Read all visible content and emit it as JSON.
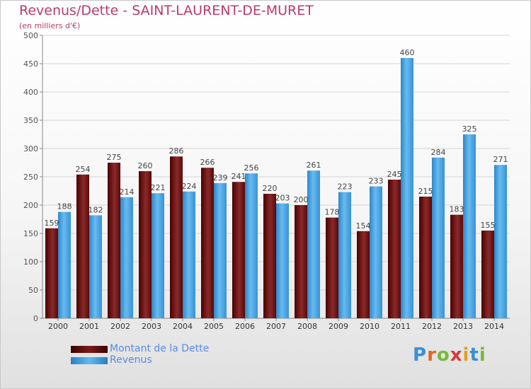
{
  "title": "Revenus/Dette - SAINT-LAURENT-DE-MURET",
  "subtitle": "(en milliers d'€)",
  "logo_text": "Proxiti",
  "colors": {
    "title": "#b93b6b",
    "dette": "#6a1010",
    "revenus": "#4aa6e6",
    "legend_text": "#5a8be0"
  },
  "chart_data": {
    "type": "bar",
    "title": "Revenus/Dette - SAINT-LAURENT-DE-MURET",
    "subtitle": "(en milliers d'€)",
    "categories": [
      "2000",
      "2001",
      "2002",
      "2003",
      "2004",
      "2005",
      "2006",
      "2007",
      "2008",
      "2009",
      "2010",
      "2011",
      "2012",
      "2013",
      "2014"
    ],
    "series": [
      {
        "name": "Montant de la Dette",
        "values": [
          159,
          254,
          275,
          260,
          286,
          266,
          241,
          220,
          200,
          178,
          154,
          245,
          215,
          183,
          155
        ]
      },
      {
        "name": "Revenus",
        "values": [
          188,
          182,
          214,
          221,
          224,
          239,
          256,
          203,
          261,
          223,
          233,
          460,
          284,
          325,
          271
        ]
      }
    ],
    "ylim": [
      0,
      500
    ],
    "yticks": [
      0,
      50,
      100,
      150,
      200,
      250,
      300,
      350,
      400,
      450,
      500
    ],
    "grid": true,
    "legend_position": "bottom-left"
  }
}
